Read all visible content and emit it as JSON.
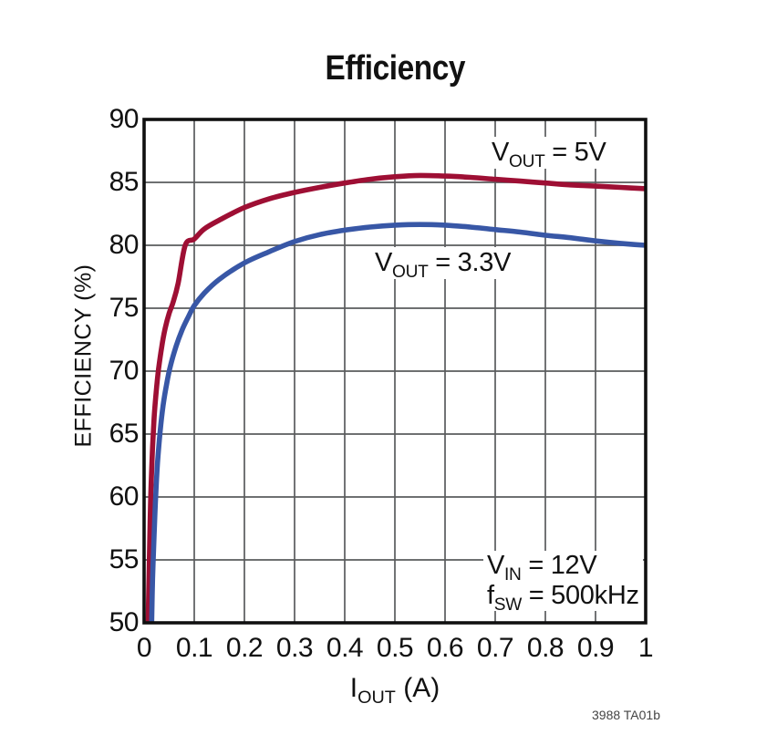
{
  "title": "Efficiency",
  "footnote": "3988 TA01b",
  "axes": {
    "y_label": "EFFICIENCY (%)",
    "x_label": {
      "prefix": "I",
      "sub": "OUT",
      "rest": " (A)"
    },
    "y_ticks": [
      "90",
      "85",
      "80",
      "75",
      "70",
      "65",
      "60",
      "55",
      "50"
    ],
    "x_ticks": [
      "0",
      "0.1",
      "0.2",
      "0.3",
      "0.4",
      "0.5",
      "0.6",
      "0.7",
      "0.8",
      "0.9",
      "1"
    ]
  },
  "annotations": {
    "line1": {
      "text": "VIN = 12V",
      "prefix": "V",
      "sub": "IN",
      "rest": " = 12V"
    },
    "line2": {
      "text": "fSW = 500kHz",
      "prefix": "f",
      "sub": "SW",
      "rest": " = 500kHz"
    }
  },
  "colors": {
    "curve_5v": "#9E0F34",
    "curve_3v3": "#3857A6",
    "grid": "#5A5B5D",
    "frame": "#101010",
    "text": "#111111",
    "background": "#ffffff"
  },
  "chart_data": {
    "type": "line",
    "title": "Efficiency",
    "xlabel": "IOUT (A)",
    "ylabel": "EFFICIENCY (%)",
    "xlim": [
      0,
      1
    ],
    "ylim": [
      50,
      90
    ],
    "x_gridstep": 0.1,
    "y_gridstep": 5,
    "grid": true,
    "legend_position": "inline-labels",
    "series": [
      {
        "name": "VOUT = 5V",
        "label": {
          "prefix": "V",
          "sub": "OUT",
          "rest": " = 5V"
        },
        "color": "#9E0F34",
        "points": [
          [
            0.008,
            50
          ],
          [
            0.01,
            54
          ],
          [
            0.012,
            58
          ],
          [
            0.014,
            61
          ],
          [
            0.017,
            64
          ],
          [
            0.02,
            66.3
          ],
          [
            0.024,
            68.3
          ],
          [
            0.029,
            70.2
          ],
          [
            0.035,
            71.9
          ],
          [
            0.042,
            73.4
          ],
          [
            0.05,
            74.6
          ],
          [
            0.058,
            75.5
          ],
          [
            0.068,
            77.0
          ],
          [
            0.082,
            80.0
          ],
          [
            0.1,
            80.5
          ],
          [
            0.12,
            81.3
          ],
          [
            0.15,
            82.0
          ],
          [
            0.2,
            83.0
          ],
          [
            0.25,
            83.7
          ],
          [
            0.3,
            84.2
          ],
          [
            0.35,
            84.6
          ],
          [
            0.4,
            84.95
          ],
          [
            0.45,
            85.25
          ],
          [
            0.5,
            85.45
          ],
          [
            0.55,
            85.55
          ],
          [
            0.6,
            85.5
          ],
          [
            0.65,
            85.4
          ],
          [
            0.7,
            85.25
          ],
          [
            0.75,
            85.1
          ],
          [
            0.8,
            84.95
          ],
          [
            0.85,
            84.8
          ],
          [
            0.9,
            84.7
          ],
          [
            0.95,
            84.6
          ],
          [
            1.0,
            84.5
          ]
        ]
      },
      {
        "name": "VOUT = 3.3V",
        "label": {
          "prefix": "V",
          "sub": "OUT",
          "rest": " = 3.3V"
        },
        "color": "#3857A6",
        "points": [
          [
            0.015,
            50
          ],
          [
            0.017,
            53.5
          ],
          [
            0.02,
            57
          ],
          [
            0.023,
            60
          ],
          [
            0.027,
            62.8
          ],
          [
            0.032,
            65.2
          ],
          [
            0.038,
            67.3
          ],
          [
            0.045,
            69.0
          ],
          [
            0.053,
            70.5
          ],
          [
            0.064,
            72.0
          ],
          [
            0.075,
            73.2
          ],
          [
            0.088,
            74.3
          ],
          [
            0.1,
            75.2
          ],
          [
            0.12,
            76.2
          ],
          [
            0.15,
            77.3
          ],
          [
            0.2,
            78.6
          ],
          [
            0.25,
            79.5
          ],
          [
            0.3,
            80.3
          ],
          [
            0.35,
            80.85
          ],
          [
            0.4,
            81.2
          ],
          [
            0.45,
            81.45
          ],
          [
            0.5,
            81.6
          ],
          [
            0.55,
            81.65
          ],
          [
            0.6,
            81.6
          ],
          [
            0.65,
            81.45
          ],
          [
            0.7,
            81.25
          ],
          [
            0.75,
            81.05
          ],
          [
            0.8,
            80.8
          ],
          [
            0.85,
            80.6
          ],
          [
            0.9,
            80.35
          ],
          [
            0.95,
            80.15
          ],
          [
            1.0,
            80.0
          ]
        ]
      }
    ],
    "conditions": [
      "VIN = 12V",
      "fSW = 500kHz"
    ]
  }
}
